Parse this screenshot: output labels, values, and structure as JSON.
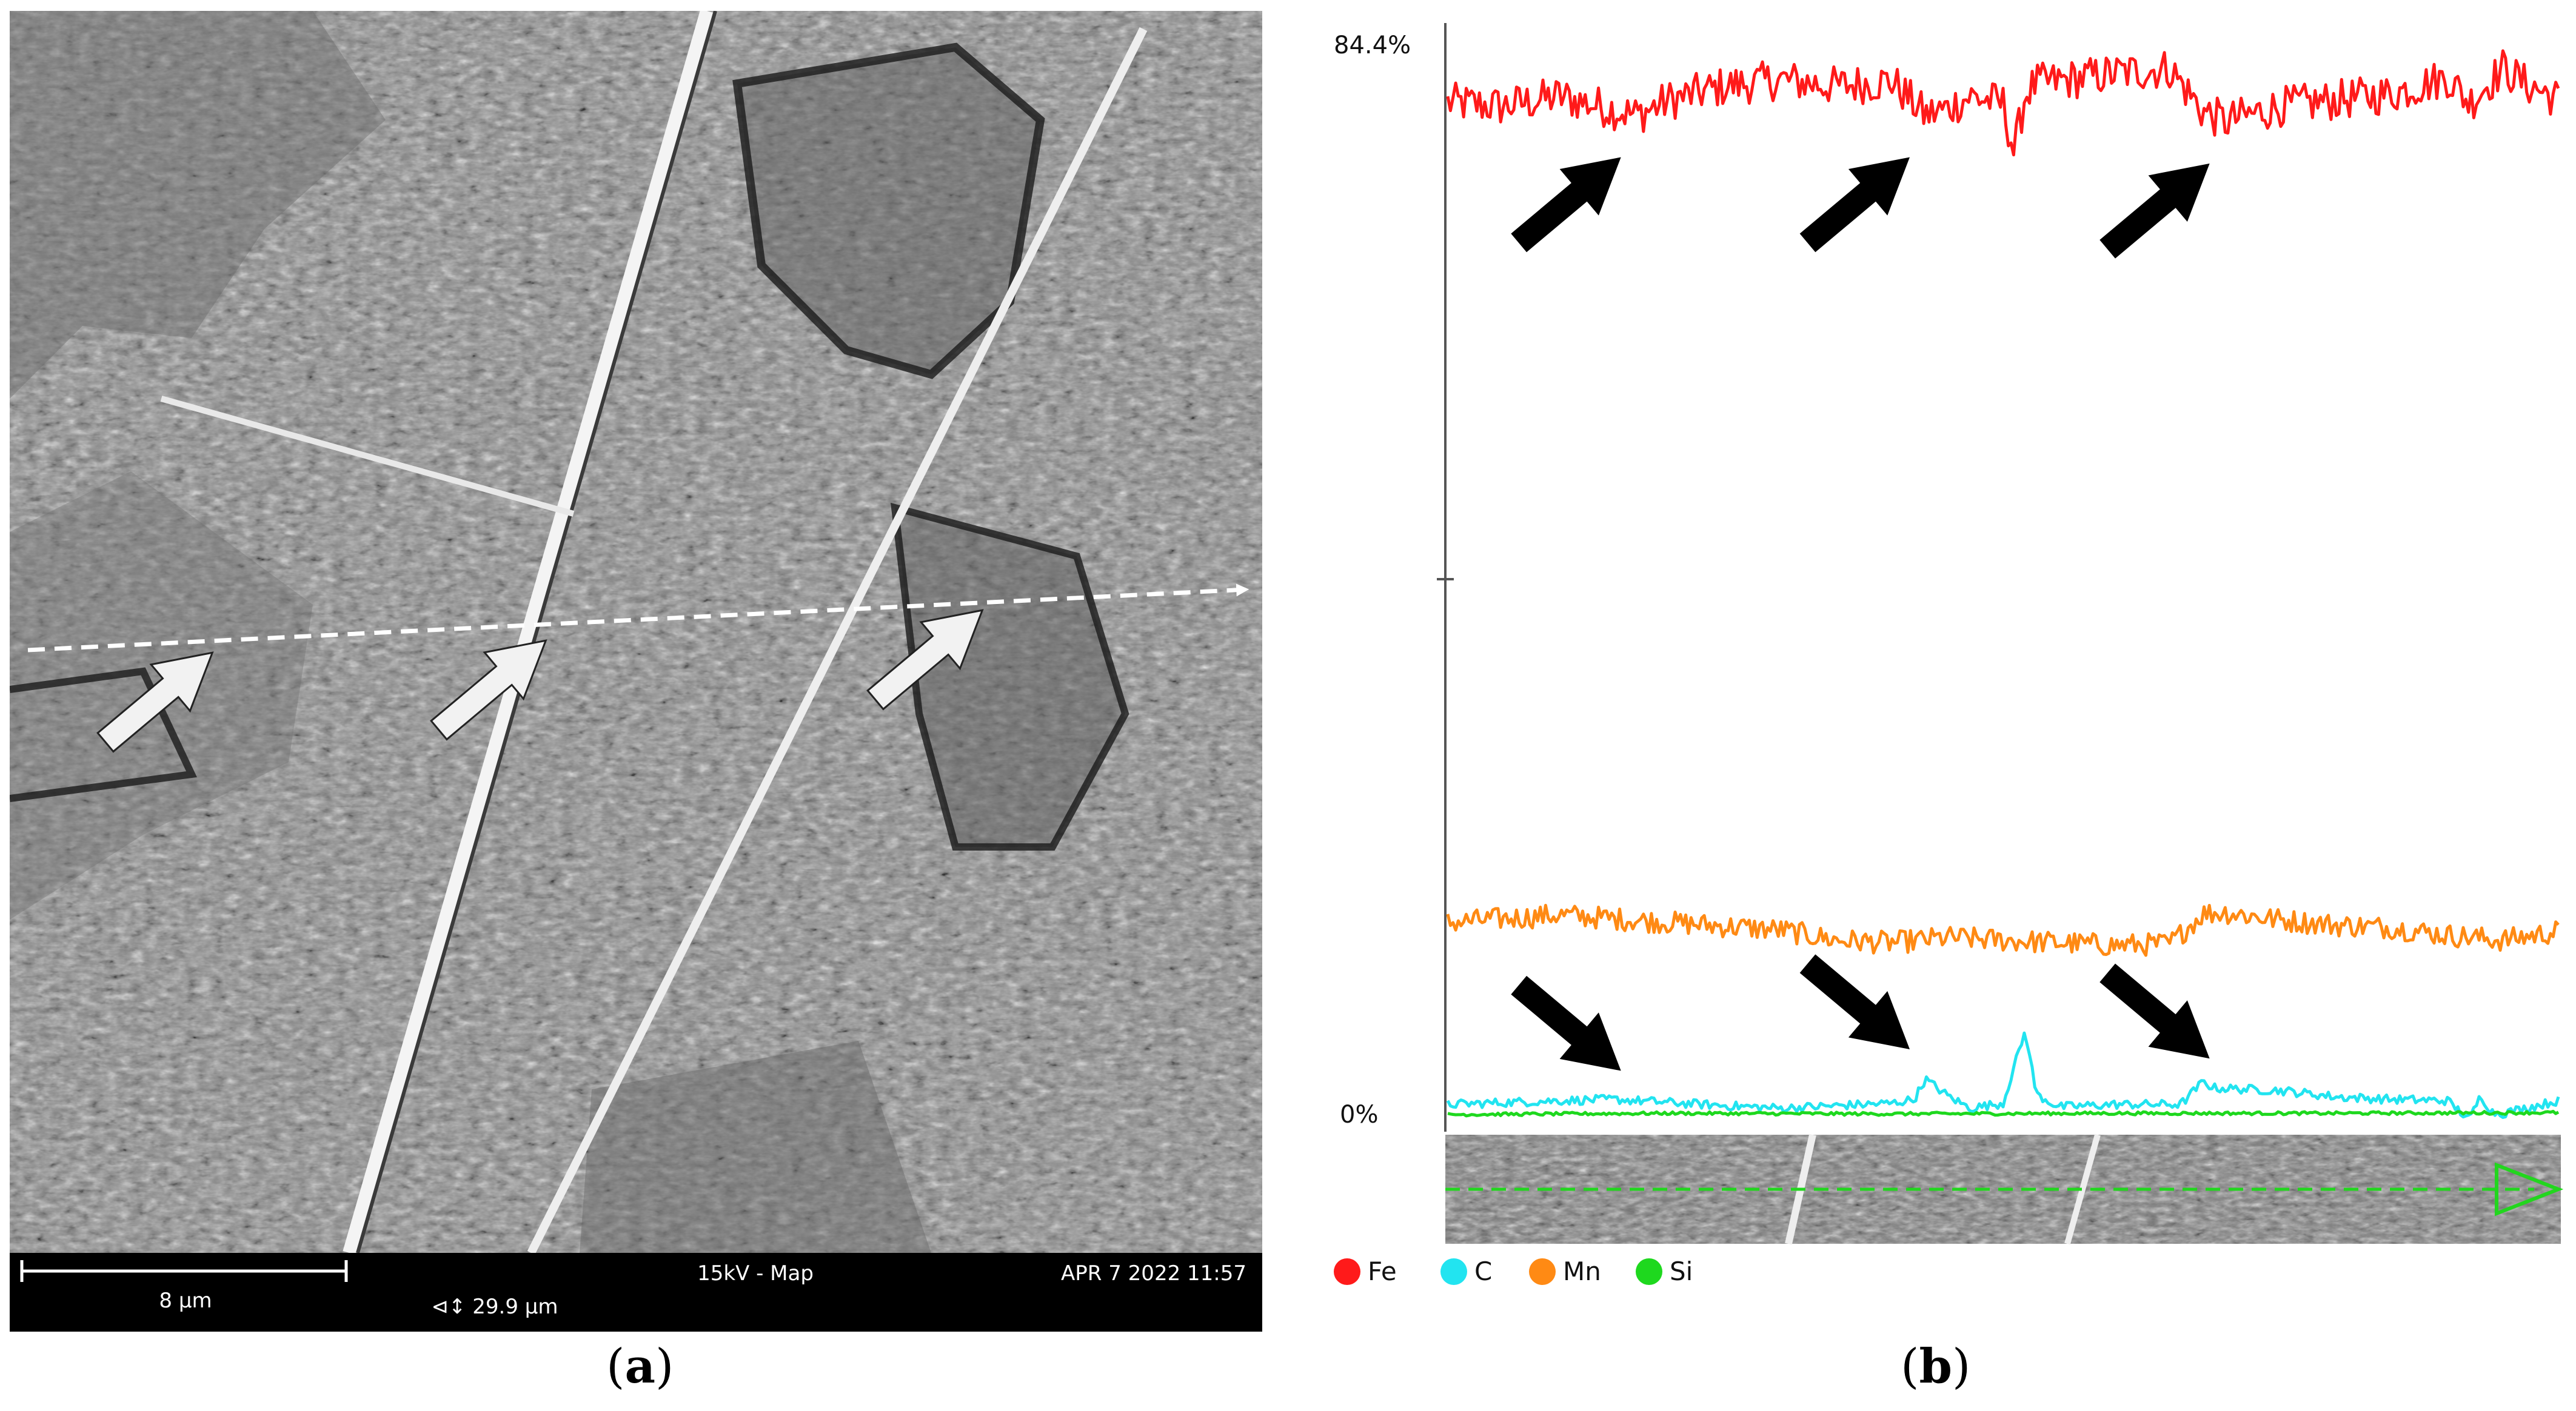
{
  "figure": {
    "caption_a": {
      "open": "(",
      "letter": "a",
      "close": ")"
    },
    "caption_b": {
      "open": "(",
      "letter": "b",
      "close": ")"
    }
  },
  "sem_image": {
    "scale_bar_label": "8 µm",
    "field_width_label": "⊲↕ 29.9 µm",
    "mode_label": "15kV - Map",
    "datetime_label": "APR 7 2022 11:57",
    "arrow_color": "#f2f2f2",
    "scan_line_color": "#ffffff"
  },
  "chart_data": {
    "type": "line",
    "title": "",
    "xlabel": "",
    "ylabel": "",
    "ymax_label": "84.4%",
    "ymin_label": "0%",
    "ylim": [
      0,
      84.4
    ],
    "x_range": [
      0,
      1
    ],
    "legend_position": "bottom-left",
    "series": [
      {
        "name": "Fe",
        "color": "#ff1a1a",
        "x": [
          0,
          0.05,
          0.1,
          0.17,
          0.2,
          0.25,
          0.3,
          0.35,
          0.4,
          0.43,
          0.45,
          0.47,
          0.5,
          0.51,
          0.52,
          0.53,
          0.55,
          0.6,
          0.65,
          0.68,
          0.7,
          0.75,
          0.8,
          0.85,
          0.9,
          0.92,
          0.95,
          0.97,
          1.0
        ],
        "y": [
          80.5,
          80.2,
          81.0,
          79.5,
          80.7,
          81.8,
          82.3,
          81.8,
          82.2,
          79.5,
          80.0,
          81.0,
          80.4,
          76.5,
          81.2,
          82.0,
          82.2,
          82.8,
          83.2,
          79.8,
          79.0,
          80.2,
          80.7,
          81.2,
          82.5,
          80.5,
          83.2,
          82.0,
          80.8
        ]
      },
      {
        "name": "Mn",
        "color": "#ff8a14",
        "x": [
          0,
          0.1,
          0.2,
          0.3,
          0.35,
          0.4,
          0.45,
          0.5,
          0.55,
          0.6,
          0.65,
          0.68,
          0.7,
          0.75,
          0.8,
          0.85,
          0.9,
          0.95,
          1.0
        ],
        "y": [
          15.6,
          16.2,
          15.6,
          15.0,
          14.2,
          14.0,
          14.4,
          14.2,
          14.0,
          13.8,
          13.9,
          16.3,
          16.4,
          15.8,
          15.4,
          15.2,
          14.6,
          14.2,
          14.9
        ]
      },
      {
        "name": "C",
        "color": "#22e4f0",
        "x": [
          0,
          0.1,
          0.15,
          0.25,
          0.3,
          0.35,
          0.4,
          0.42,
          0.43,
          0.45,
          0.47,
          0.5,
          0.51,
          0.52,
          0.53,
          0.55,
          0.6,
          0.66,
          0.68,
          0.69,
          0.75,
          0.8,
          0.85,
          0.9,
          0.92,
          0.93,
          0.94,
          0.95,
          1.0
        ],
        "y": [
          1.2,
          1.5,
          1.6,
          1.1,
          0.9,
          1.1,
          1.3,
          1.6,
          3.2,
          1.9,
          0.9,
          1.3,
          4.2,
          7.0,
          2.0,
          1.0,
          1.2,
          1.2,
          3.0,
          2.5,
          2.3,
          1.8,
          1.6,
          1.5,
          0.0,
          1.9,
          0.6,
          0.5,
          1.5
        ]
      },
      {
        "name": "Si",
        "color": "#1ed81e",
        "x": [
          0,
          0.2,
          0.4,
          0.6,
          0.8,
          1.0
        ],
        "y": [
          0.4,
          0.5,
          0.45,
          0.5,
          0.5,
          0.55
        ]
      }
    ],
    "annotations": [
      {
        "type": "arrow",
        "target_series": "Fe",
        "x": 0.17,
        "direction": "up-right"
      },
      {
        "type": "arrow",
        "target_series": "Fe",
        "x": 0.43,
        "direction": "up-right"
      },
      {
        "type": "arrow",
        "target_series": "Fe",
        "x": 0.7,
        "direction": "up-right"
      },
      {
        "type": "arrow",
        "target_series": "C",
        "x": 0.17,
        "direction": "down-right"
      },
      {
        "type": "arrow",
        "target_series": "C",
        "x": 0.43,
        "direction": "down-right"
      },
      {
        "type": "arrow",
        "target_series": "C",
        "x": 0.7,
        "direction": "down-right"
      }
    ]
  }
}
